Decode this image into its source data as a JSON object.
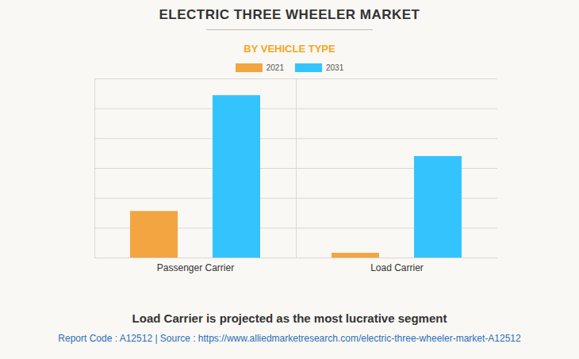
{
  "chart_data": {
    "type": "bar",
    "title": "ELECTRIC THREE WHEELER MARKET",
    "subtitle": "BY VEHICLE TYPE",
    "caption": "Load Carrier is projected as the most lucrative segment",
    "source": "Report Code : A12512  |  Source : https://www.alliedmarketresearch.com/electric-three-wheeler-market-A12512",
    "categories": [
      "Passenger Carrier",
      "Load Carrier"
    ],
    "series": [
      {
        "name": "2021",
        "color": "#f2a541",
        "values": [
          1.56,
          0.16
        ]
      },
      {
        "name": "2031",
        "color": "#33c4fe",
        "values": [
          5.44,
          3.4
        ]
      }
    ],
    "ylim": [
      0,
      6
    ],
    "yticks": [
      0,
      1,
      2,
      3,
      4,
      5,
      6
    ],
    "grid": true,
    "legend": "top",
    "tick_labels": "x"
  }
}
